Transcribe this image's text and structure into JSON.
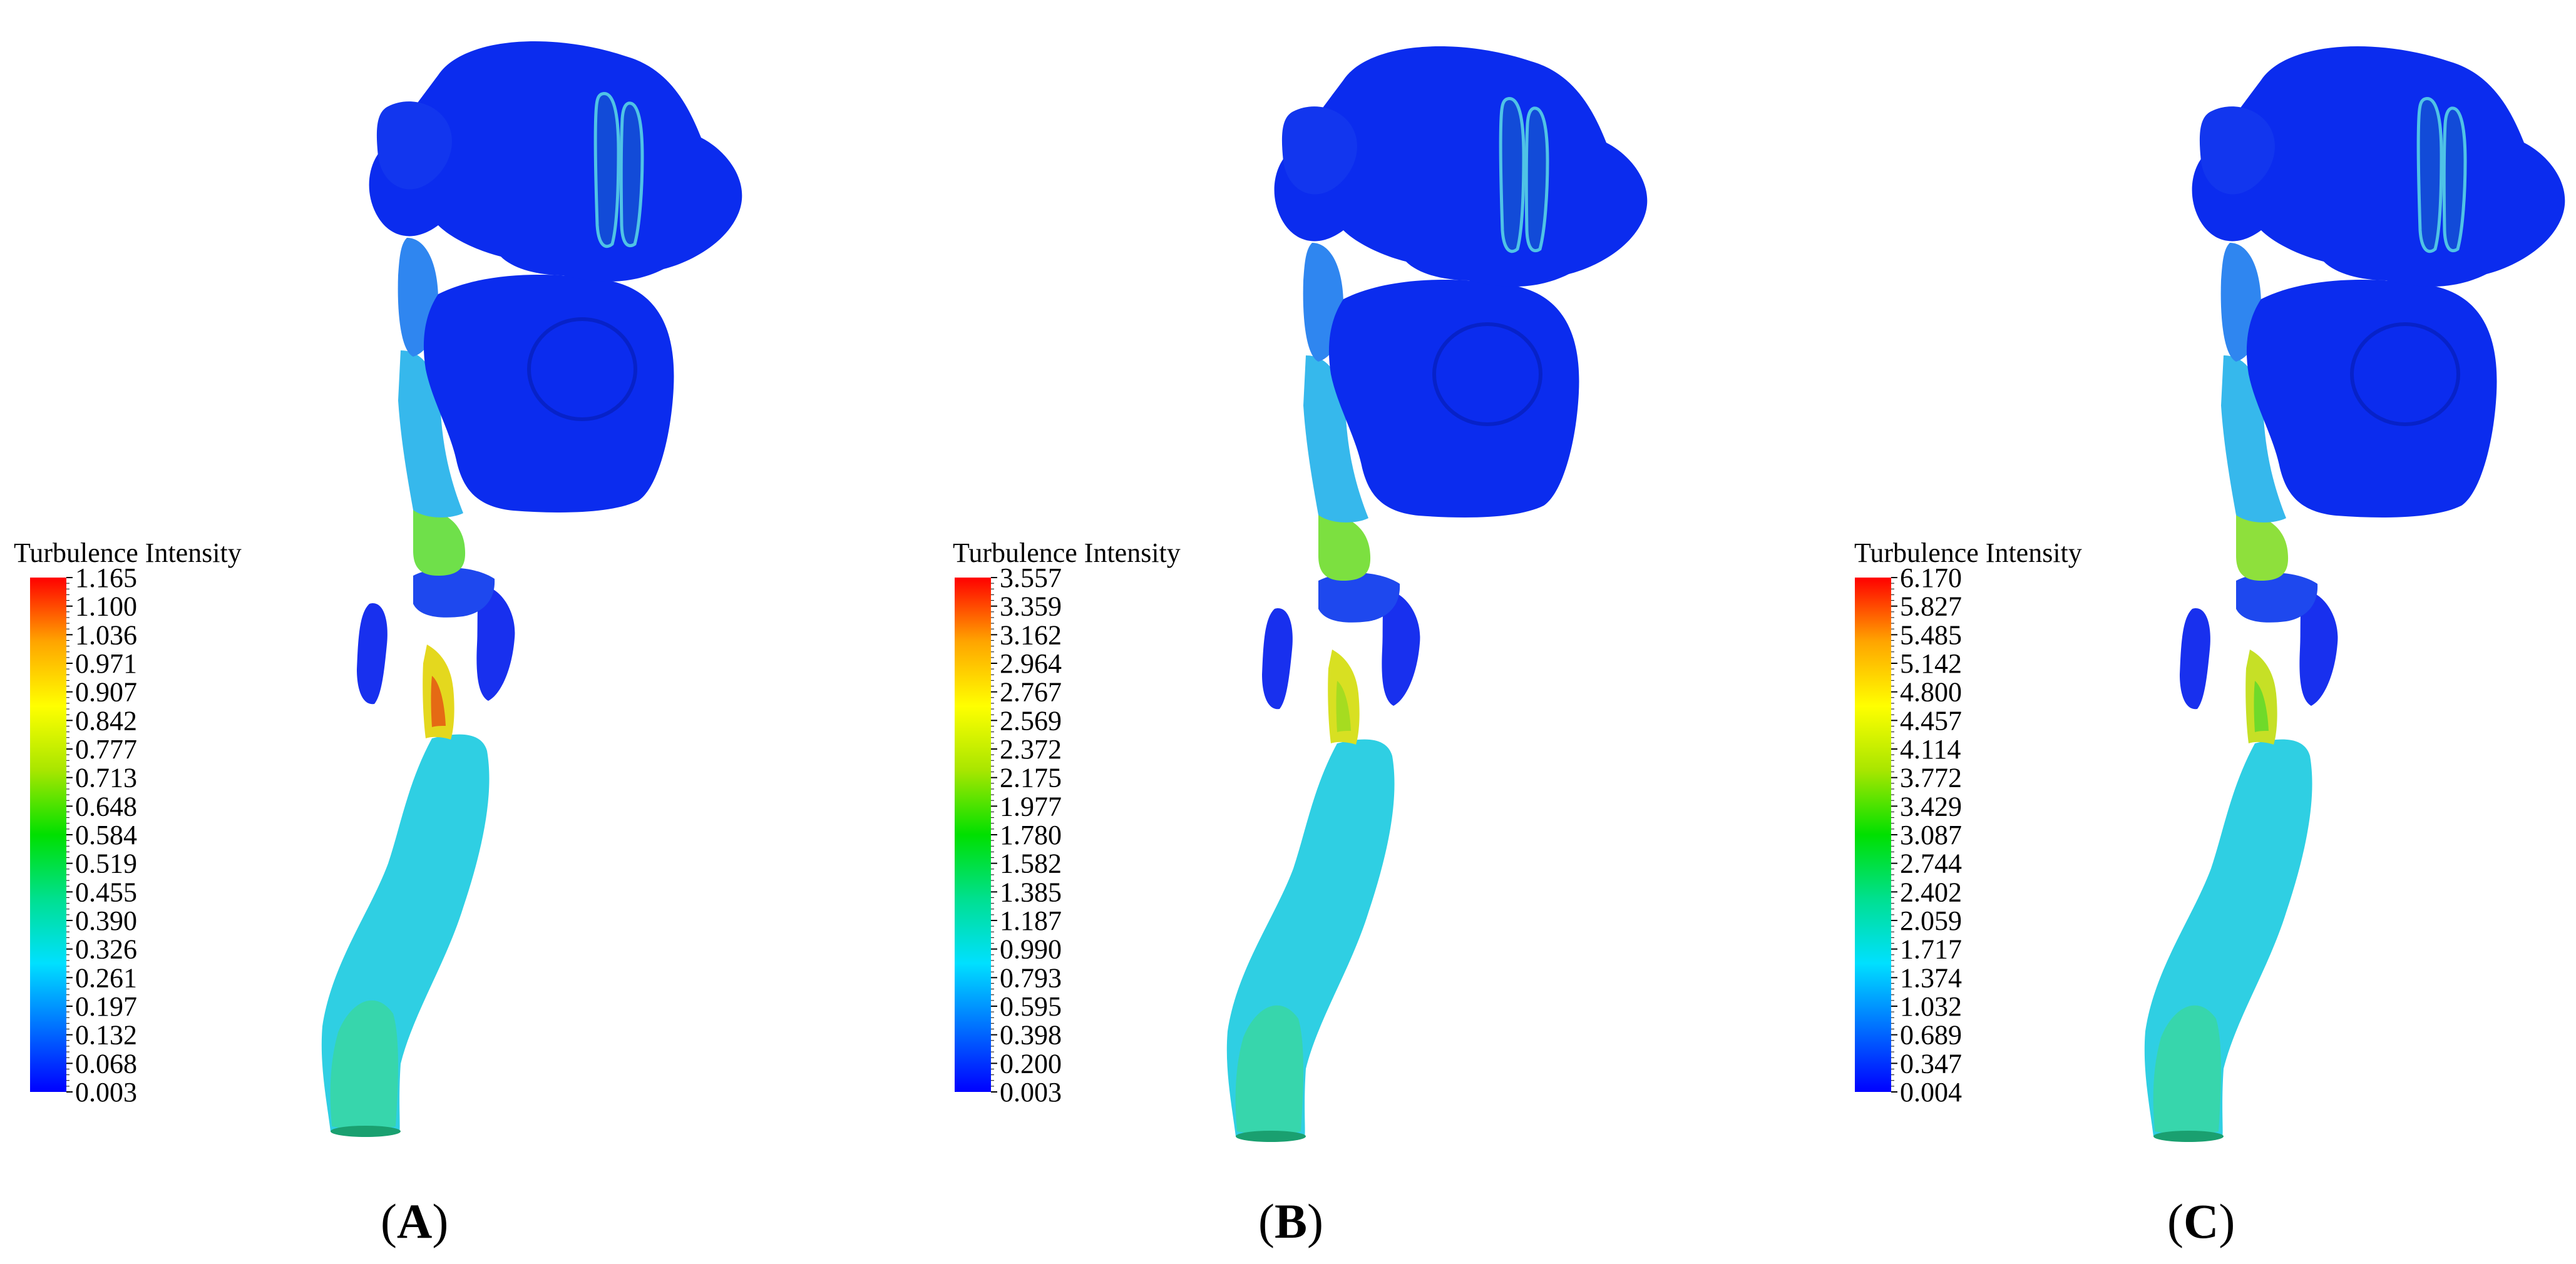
{
  "legend_title": "Turbulence Intensity",
  "colormap": [
    "#0000ff",
    "#0070ff",
    "#00e0ff",
    "#00e090",
    "#00e000",
    "#a8e600",
    "#ffff00",
    "#ffa500",
    "#ff0000"
  ],
  "surface_colors": {
    "deep_blue": "#0a23ee",
    "mid_blue": "#2a7ff2",
    "cyan": "#2fd0e8",
    "teal": "#31d6c0",
    "green": "#4fdc3a",
    "yellow": "#e4e21a",
    "red": "#e64a12"
  },
  "panels": [
    {
      "label": "A",
      "ticks": [
        "1.165",
        "1.100",
        "1.036",
        "0.971",
        "0.907",
        "0.842",
        "0.777",
        "0.713",
        "0.648",
        "0.584",
        "0.519",
        "0.455",
        "0.390",
        "0.326",
        "0.261",
        "0.197",
        "0.132",
        "0.068",
        "0.003"
      ]
    },
    {
      "label": "B",
      "ticks": [
        "3.557",
        "3.359",
        "3.162",
        "2.964",
        "2.767",
        "2.569",
        "2.372",
        "2.175",
        "1.977",
        "1.780",
        "1.582",
        "1.385",
        "1.187",
        "0.990",
        "0.793",
        "0.595",
        "0.398",
        "0.200",
        "0.003"
      ]
    },
    {
      "label": "C",
      "ticks": [
        "6.170",
        "5.827",
        "5.485",
        "5.142",
        "4.800",
        "4.457",
        "4.114",
        "3.772",
        "3.429",
        "3.087",
        "2.744",
        "2.402",
        "2.059",
        "1.717",
        "1.374",
        "1.032",
        "0.689",
        "0.347",
        "0.004"
      ]
    }
  ]
}
